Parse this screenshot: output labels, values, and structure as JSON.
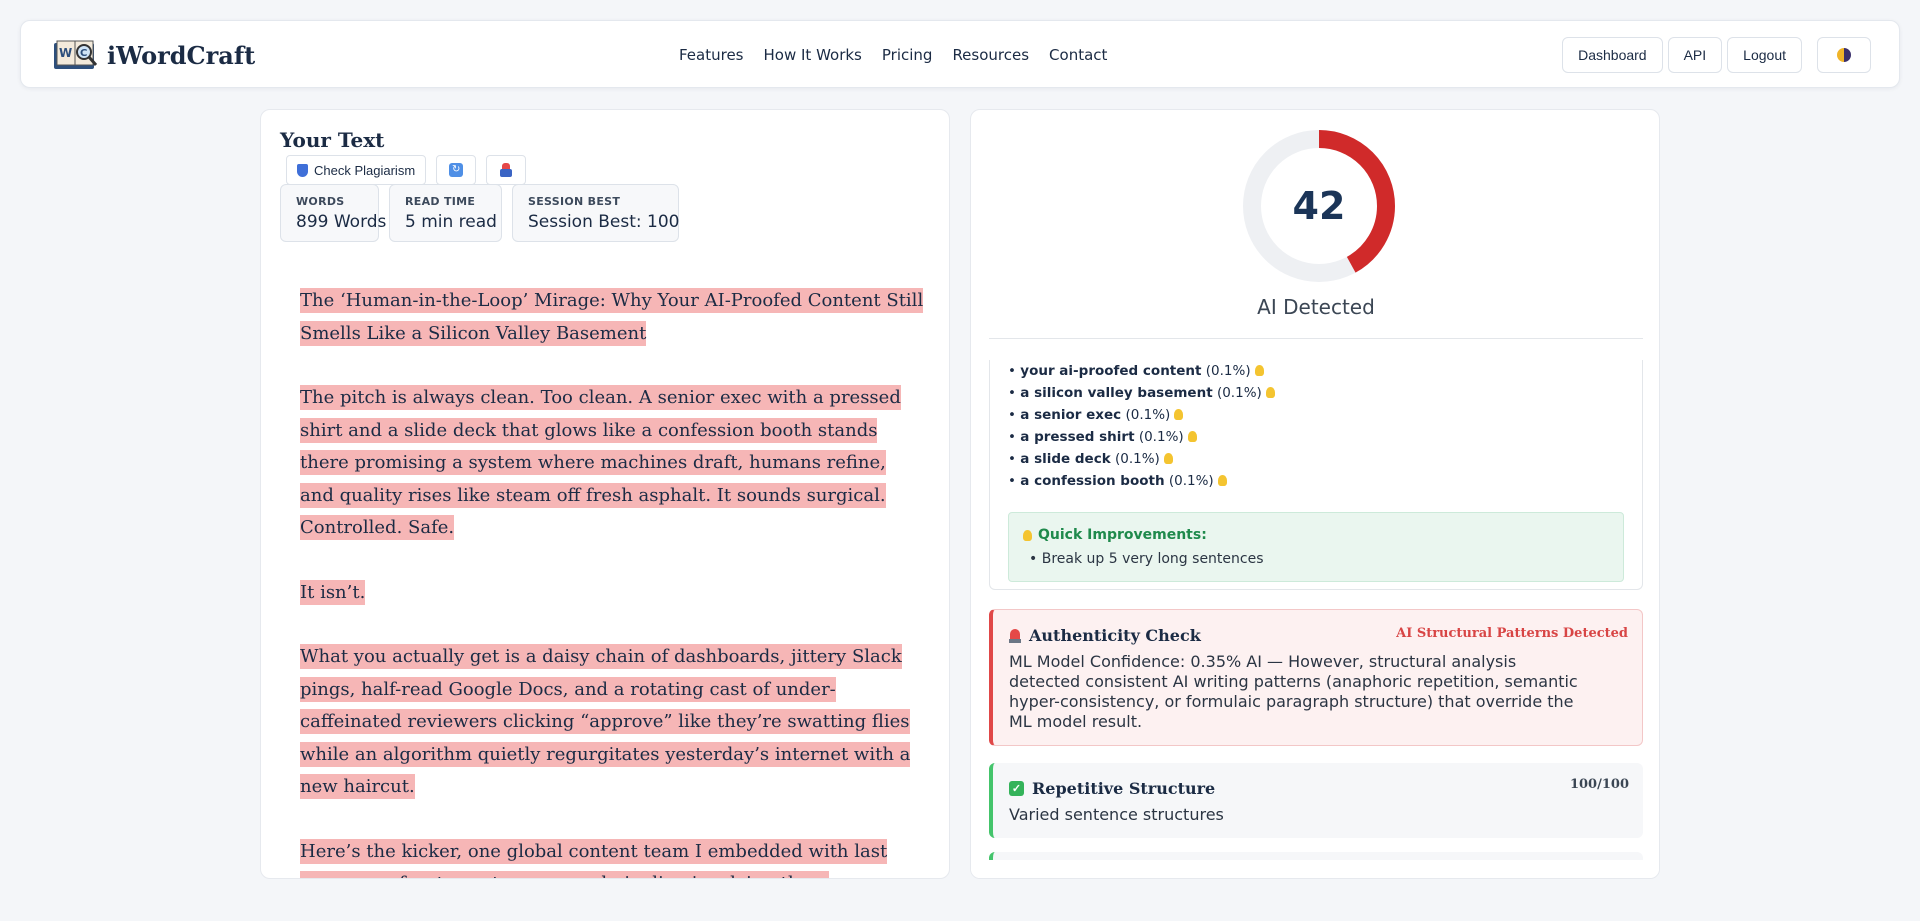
{
  "nav": {
    "brand": "iWordCraft",
    "links": [
      "Features",
      "How It Works",
      "Pricing",
      "Resources",
      "Contact"
    ],
    "actions": [
      "Dashboard",
      "API",
      "Logout"
    ]
  },
  "editor": {
    "title": "Your Text",
    "check_button": "Check Plagiarism",
    "stats": {
      "words_label": "WORDS",
      "words_value": "899 Words",
      "read_label": "READ TIME",
      "read_value": "5 min read",
      "best_label": "SESSION BEST",
      "best_value": "Session Best: 100"
    },
    "paragraphs": [
      "The ‘Human-in-the-Loop’ Mirage: Why Your AI-Proofed Content Still Smells Like a Silicon Valley Basement",
      "The pitch is always clean. Too clean. A senior exec with a pressed shirt and a slide deck that glows like a confession booth stands there promising a system where machines draft, humans refine, and quality rises like steam off fresh asphalt. It sounds surgical. Controlled. Safe.",
      "It isn’t.",
      "What you actually get is a daisy chain of dashboards, jittery Slack pings, half-read Google Docs, and a rotating cast of under-caffeinated reviewers clicking “approve” like they’re swatting flies while an algorithm quietly regurgitates yesterday’s internet with a new haircut.",
      "Here’s the kicker, one global content team I embedded with last year ran a fourteen-step approval pipeline involving three continents, five"
    ]
  },
  "analysis": {
    "score": "42",
    "score_fraction": 0.42,
    "label": "AI Detected",
    "accent": "#d02a2a",
    "phrases": [
      {
        "text": "your ai-proofed content",
        "pct": "(0.1%)"
      },
      {
        "text": "a silicon valley basement",
        "pct": "(0.1%)"
      },
      {
        "text": "a senior exec",
        "pct": "(0.1%)"
      },
      {
        "text": "a pressed shirt",
        "pct": "(0.1%)"
      },
      {
        "text": "a slide deck",
        "pct": "(0.1%)"
      },
      {
        "text": "a confession booth",
        "pct": "(0.1%)"
      }
    ],
    "quick": {
      "title": "Quick Improvements:",
      "item": "Break up 5 very long sentences"
    },
    "authenticity": {
      "title": "Authenticity Check",
      "flag": "AI Structural Patterns Detected",
      "body": "ML Model Confidence: 0.35% AI — However, structural analysis detected consistent AI writing patterns (anaphoric repetition, semantic hyper-consistency, or formulaic paragraph structure) that override the ML model result."
    },
    "repetitive": {
      "title": "Repetitive Structure",
      "score": "100/100",
      "body": "Varied sentence structures"
    }
  }
}
